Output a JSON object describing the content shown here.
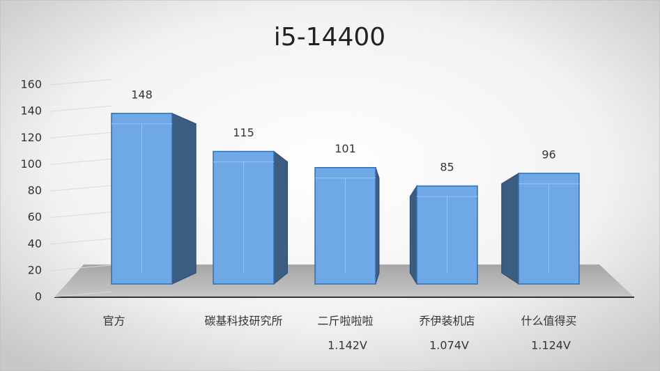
{
  "chart_data": {
    "type": "bar3d",
    "title": "i5-14400",
    "categories": [
      "官方",
      "碳基科技研究所",
      "二斤啦啦啦",
      "乔伊装机店",
      "什么值得买"
    ],
    "category_notes": [
      null,
      null,
      "1.142V",
      "1.074V",
      "1.124V"
    ],
    "values": [
      148,
      115,
      101,
      85,
      96
    ],
    "color": "#6fa8e6",
    "ylim": [
      0,
      160
    ],
    "yticks": [
      0,
      20,
      40,
      60,
      80,
      100,
      120,
      140,
      160
    ],
    "grid": true
  }
}
